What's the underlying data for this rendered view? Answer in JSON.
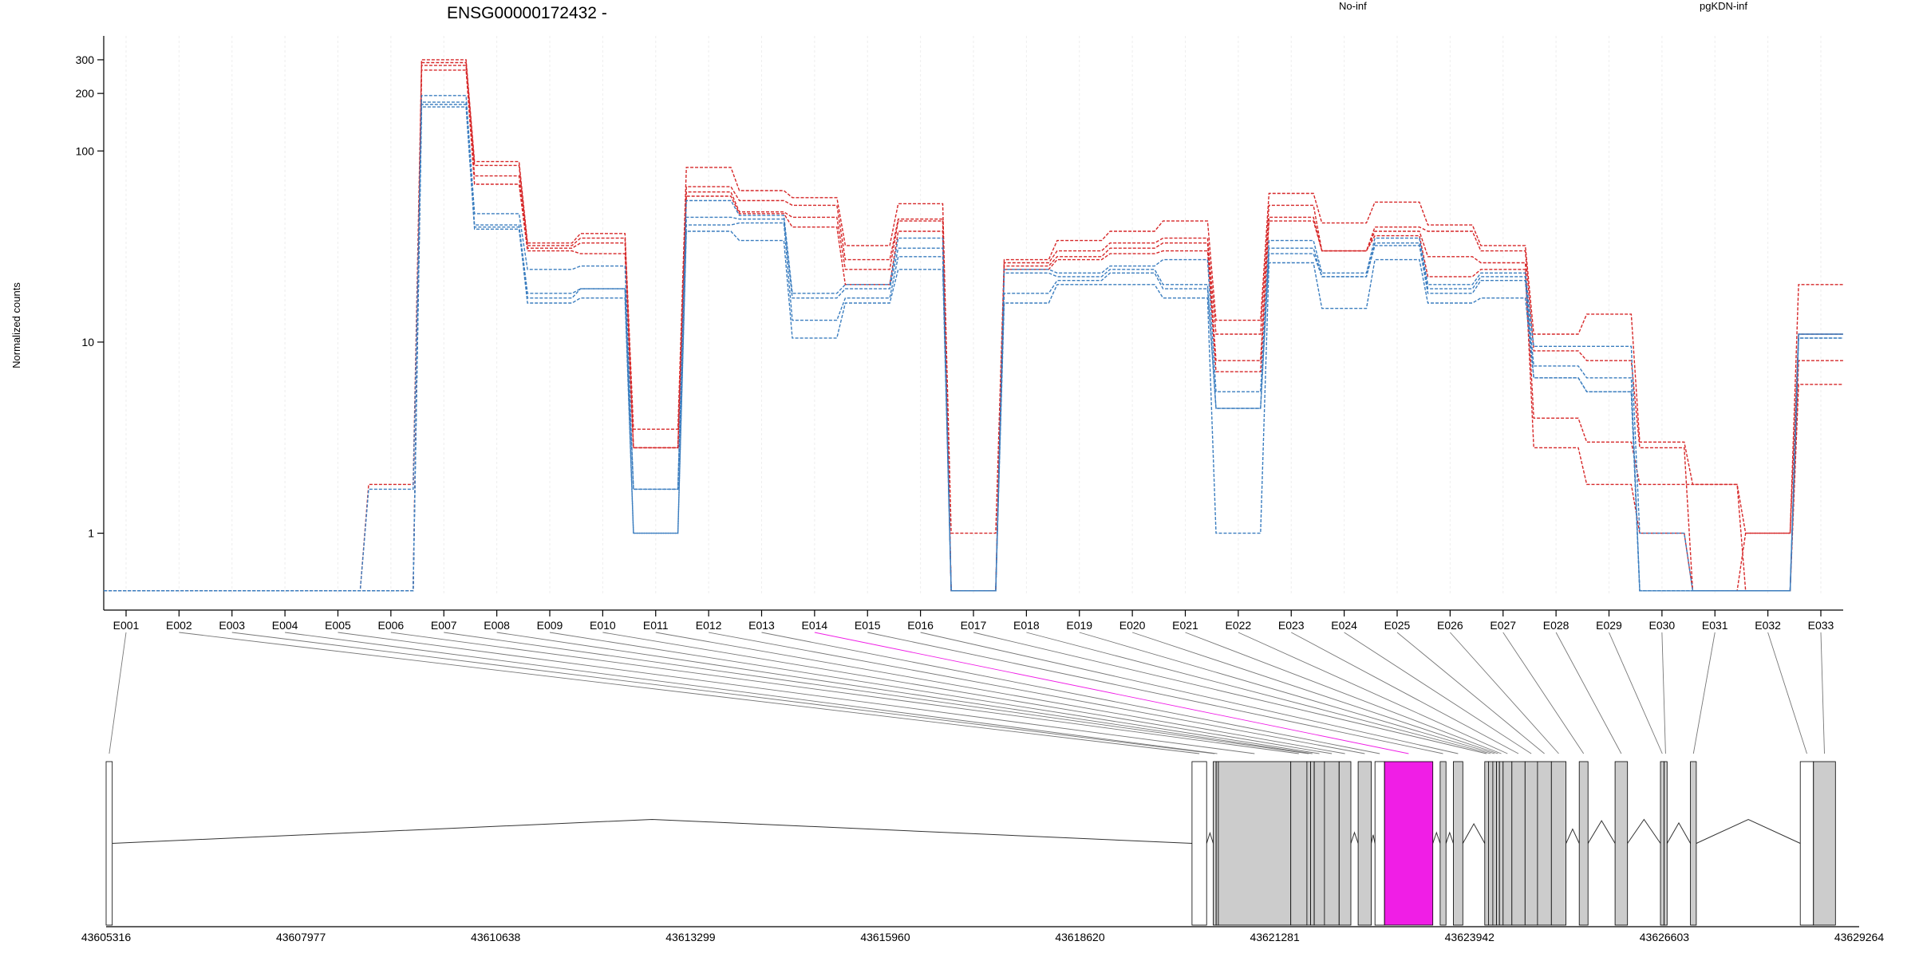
{
  "title": "ENSG00000172432 -",
  "colors": {
    "no_inf": "#d62728",
    "pgkdn_inf": "#3a7dbf",
    "highlight": "#f01ee6",
    "exon_fill": "#cccccc"
  },
  "chart_data": {
    "type": "line",
    "title": "ENSG00000172432 -",
    "ylabel": "Normalized counts",
    "yscale": "log",
    "ylim": [
      0.48,
      400
    ],
    "yticks": [
      1,
      10,
      100,
      200,
      300
    ],
    "grid": true,
    "legend": {
      "placement": "top"
    },
    "categories": [
      "E001",
      "E002",
      "E003",
      "E004",
      "E005",
      "E006",
      "E007",
      "E008",
      "E009",
      "E010",
      "E011",
      "E012",
      "E013",
      "E014",
      "E015",
      "E016",
      "E017",
      "E018",
      "E019",
      "E020",
      "E021",
      "E022",
      "E023",
      "E024",
      "E025",
      "E026",
      "E027",
      "E028",
      "E029",
      "E030",
      "E031",
      "E032",
      "E033"
    ],
    "series": [
      {
        "group": "No-inf",
        "values": [
          0.5,
          0.5,
          0.5,
          0.5,
          0.5,
          1.8,
          300,
          88,
          33,
          37,
          3.5,
          82,
          62,
          57,
          32,
          53,
          1,
          27,
          34,
          38,
          43,
          13,
          60,
          42,
          54,
          41,
          32,
          11,
          14,
          3,
          1.8,
          1,
          20
        ]
      },
      {
        "group": "No-inf",
        "values": [
          0.5,
          0.5,
          0.5,
          0.5,
          0.5,
          0.5,
          290,
          84,
          32,
          35,
          2.8,
          65,
          55,
          52,
          27,
          44,
          0.5,
          26,
          30,
          33,
          35,
          11,
          52,
          30,
          40,
          38,
          30,
          9,
          8,
          2.8,
          0.5,
          1,
          11
        ]
      },
      {
        "group": "No-inf",
        "values": [
          0.5,
          0.5,
          0.5,
          0.5,
          0.5,
          0.5,
          280,
          74,
          31,
          33,
          2.8,
          61,
          48,
          45,
          24,
          43,
          0.5,
          25,
          28,
          31,
          33,
          8,
          45,
          30,
          38,
          28,
          26,
          4,
          3,
          1.8,
          1.8,
          0.5,
          8
        ]
      },
      {
        "group": "No-inf",
        "values": [
          0.5,
          0.5,
          0.5,
          0.5,
          0.5,
          0.5,
          265,
          67,
          30,
          29,
          2.8,
          58,
          47,
          40,
          20,
          38,
          0.5,
          24,
          27,
          29,
          30,
          7,
          43,
          30,
          36,
          22,
          24,
          2.8,
          1.8,
          1,
          0.5,
          0.5,
          6
        ]
      },
      {
        "group": "pgKDN-inf",
        "values": [
          0.5,
          0.5,
          0.5,
          0.5,
          0.5,
          1.7,
          195,
          47,
          24,
          25,
          1.7,
          55,
          46,
          18,
          20,
          35,
          0.5,
          24,
          23,
          25,
          27,
          5.5,
          34,
          23,
          35,
          20,
          23,
          9.5,
          9.5,
          1,
          0.5,
          0.5,
          11
        ]
      },
      {
        "group": "pgKDN-inf",
        "values": [
          0.5,
          0.5,
          0.5,
          0.5,
          0.5,
          0.5,
          180,
          41,
          18,
          19,
          1.7,
          45,
          44,
          17,
          19,
          31,
          0.5,
          23,
          22,
          24,
          20,
          4.5,
          31,
          22,
          33,
          19,
          22,
          7.5,
          6.5,
          0.5,
          0.5,
          0.5,
          11
        ]
      },
      {
        "group": "pgKDN-inf",
        "values": [
          0.5,
          0.5,
          0.5,
          0.5,
          0.5,
          0.5,
          175,
          40,
          17,
          19,
          1,
          41,
          42,
          13,
          17,
          28,
          0.5,
          18,
          21,
          23,
          19,
          4.5,
          29,
          22,
          32,
          18,
          21,
          6.5,
          5.5,
          0.5,
          0.5,
          0.5,
          10.5
        ]
      },
      {
        "group": "pgKDN-inf",
        "values": [
          0.5,
          0.5,
          0.5,
          0.5,
          0.5,
          0.5,
          170,
          39,
          16,
          17,
          1,
          38,
          34,
          10.5,
          16,
          24,
          0.5,
          16,
          20,
          20,
          17,
          1,
          26,
          15,
          27,
          16,
          17,
          6.5,
          5.5,
          0.5,
          0.5,
          0.5,
          10.5
        ]
      }
    ]
  },
  "legend": {
    "no_inf": "No-inf",
    "pgkdn_inf": "pgKDN-inf"
  },
  "gene_model": {
    "genomic_range": [
      43605316,
      43629264
    ],
    "coordinate_ticks": [
      "43605316",
      "43607977",
      "43610638",
      "43613299",
      "43615960",
      "43618620",
      "43621281",
      "43623942",
      "43626603",
      "43629264"
    ],
    "highlighted_exon": "E014",
    "exons": [
      {
        "id": "E001",
        "start": 43605316,
        "end": 43605400,
        "fill": "white"
      },
      {
        "id": "E002",
        "start": 43620150,
        "end": 43620350,
        "fill": "white"
      },
      {
        "id": "E003",
        "start": 43620440,
        "end": 43620480,
        "fill": "grey"
      },
      {
        "id": "E004",
        "start": 43620480,
        "end": 43620510,
        "fill": "grey"
      },
      {
        "id": "E005",
        "start": 43620510,
        "end": 43621500,
        "fill": "grey"
      },
      {
        "id": "E006",
        "start": 43621500,
        "end": 43621720,
        "fill": "grey"
      },
      {
        "id": "E007",
        "start": 43621720,
        "end": 43621770,
        "fill": "grey"
      },
      {
        "id": "E008",
        "start": 43621770,
        "end": 43621820,
        "fill": "grey"
      },
      {
        "id": "E009",
        "start": 43621820,
        "end": 43621960,
        "fill": "grey"
      },
      {
        "id": "E010",
        "start": 43621960,
        "end": 43622160,
        "fill": "grey"
      },
      {
        "id": "E011",
        "start": 43622160,
        "end": 43622320,
        "fill": "grey"
      },
      {
        "id": "E012",
        "start": 43622420,
        "end": 43622600,
        "fill": "grey"
      },
      {
        "id": "E013",
        "start": 43622650,
        "end": 43622780,
        "fill": "white"
      },
      {
        "id": "E014",
        "start": 43622780,
        "end": 43623440,
        "fill": "highlight"
      },
      {
        "id": "E015",
        "start": 43623540,
        "end": 43623620,
        "fill": "grey"
      },
      {
        "id": "E016",
        "start": 43623720,
        "end": 43623850,
        "fill": "grey"
      },
      {
        "id": "E017",
        "start": 43624150,
        "end": 43624200,
        "fill": "grey"
      },
      {
        "id": "E018",
        "start": 43624200,
        "end": 43624260,
        "fill": "grey"
      },
      {
        "id": "E019",
        "start": 43624260,
        "end": 43624310,
        "fill": "grey"
      },
      {
        "id": "E020",
        "start": 43624310,
        "end": 43624350,
        "fill": "grey"
      },
      {
        "id": "E021",
        "start": 43624350,
        "end": 43624400,
        "fill": "grey"
      },
      {
        "id": "E022",
        "start": 43624400,
        "end": 43624520,
        "fill": "grey"
      },
      {
        "id": "E023",
        "start": 43624520,
        "end": 43624700,
        "fill": "grey"
      },
      {
        "id": "E024",
        "start": 43624700,
        "end": 43624870,
        "fill": "grey"
      },
      {
        "id": "E025",
        "start": 43624870,
        "end": 43625060,
        "fill": "grey"
      },
      {
        "id": "E026",
        "start": 43625060,
        "end": 43625260,
        "fill": "grey"
      },
      {
        "id": "E027",
        "start": 43625440,
        "end": 43625560,
        "fill": "grey"
      },
      {
        "id": "E028",
        "start": 43625930,
        "end": 43626100,
        "fill": "grey"
      },
      {
        "id": "E029",
        "start": 43626550,
        "end": 43626600,
        "fill": "grey"
      },
      {
        "id": "E030",
        "start": 43626600,
        "end": 43626640,
        "fill": "grey"
      },
      {
        "id": "E031",
        "start": 43626960,
        "end": 43627040,
        "fill": "grey"
      },
      {
        "id": "E032",
        "start": 43628460,
        "end": 43628640,
        "fill": "white"
      },
      {
        "id": "E033",
        "start": 43628640,
        "end": 43628940,
        "fill": "grey"
      }
    ],
    "introns": [
      [
        43605400,
        43620150
      ],
      [
        43620350,
        43620440
      ],
      [
        43622320,
        43622420
      ],
      [
        43622600,
        43622650
      ],
      [
        43623440,
        43623540
      ],
      [
        43623620,
        43623720
      ],
      [
        43623850,
        43624150
      ],
      [
        43625260,
        43625440
      ],
      [
        43625560,
        43625930
      ],
      [
        43626100,
        43626550
      ],
      [
        43626640,
        43626960
      ],
      [
        43627040,
        43628460
      ]
    ]
  }
}
